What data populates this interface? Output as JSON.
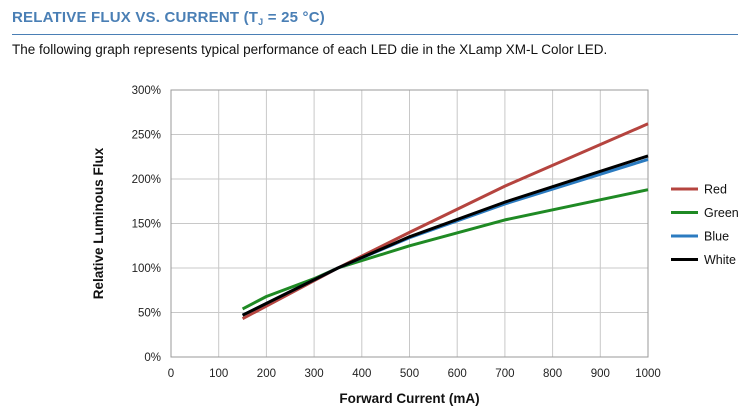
{
  "header": {
    "title_main": "RELATIVE FLUX VS. CURRENT (T",
    "title_sub": "J",
    "title_end": " = 25 °C)"
  },
  "description": "The following graph represents typical performance of each LED die in the XLamp XM-L Color LED.",
  "colors": {
    "header": "#4a7fb5",
    "grid": "#c8c8c8",
    "red": "#b5443f",
    "green": "#1f8a24",
    "blue": "#2b7bc0",
    "white": "#000000"
  },
  "chart_data": {
    "type": "line",
    "title": "",
    "xlabel": "Forward Current (mA)",
    "ylabel": "Relative Luminous Flux",
    "xlim": [
      0,
      1000
    ],
    "ylim": [
      0,
      300
    ],
    "x_ticks": [
      0,
      100,
      200,
      300,
      400,
      500,
      600,
      700,
      800,
      900,
      1000
    ],
    "y_ticks": [
      0,
      50,
      100,
      150,
      200,
      250,
      300
    ],
    "y_tick_labels": [
      "0%",
      "50%",
      "100%",
      "150%",
      "200%",
      "250%",
      "300%"
    ],
    "x_tick_labels": [
      "0",
      "100",
      "200",
      "300",
      "400",
      "500",
      "600",
      "700",
      "800",
      "900",
      "1000"
    ],
    "grid": true,
    "legend_position": "right",
    "series": [
      {
        "name": "Red",
        "color": "#b5443f",
        "x": [
          150,
          350,
          500,
          700,
          1000
        ],
        "y": [
          43,
          100,
          140,
          192,
          262
        ]
      },
      {
        "name": "Green",
        "color": "#1f8a24",
        "x": [
          150,
          200,
          300,
          350,
          500,
          700,
          1000
        ],
        "y": [
          54,
          68,
          88,
          100,
          125,
          154,
          188
        ]
      },
      {
        "name": "Blue",
        "color": "#2b7bc0",
        "x": [
          150,
          350,
          500,
          700,
          1000
        ],
        "y": [
          47,
          100,
          134,
          172,
          222
        ]
      },
      {
        "name": "White",
        "color": "#000000",
        "x": [
          150,
          350,
          500,
          700,
          1000
        ],
        "y": [
          47,
          100,
          135,
          174,
          226
        ]
      }
    ]
  }
}
